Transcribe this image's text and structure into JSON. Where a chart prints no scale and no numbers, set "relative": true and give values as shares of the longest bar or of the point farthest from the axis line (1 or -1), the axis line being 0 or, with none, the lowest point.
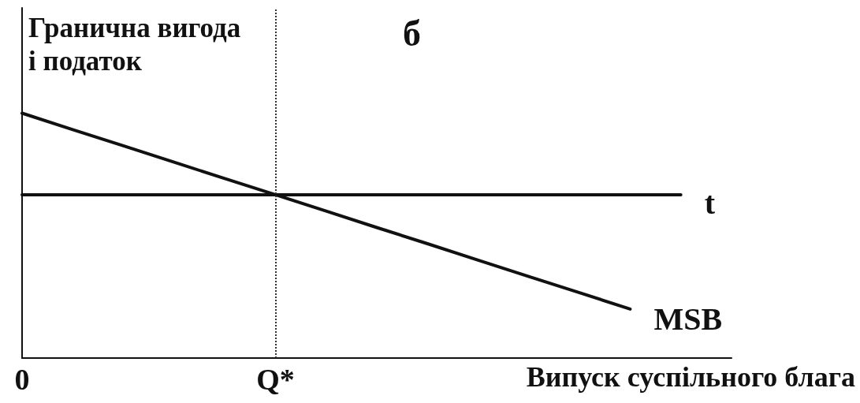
{
  "chart_data": {
    "type": "line",
    "title": "б",
    "ylabel": "Гранична вигода і податок",
    "xlabel": "Випуск суспільного блага",
    "relative": true,
    "categories": [
      "0",
      null,
      null,
      null,
      null,
      "Q*",
      null,
      null,
      null,
      null,
      null,
      null,
      null,
      null,
      null
    ],
    "tick_labels": "x",
    "series": [
      {
        "name": "t",
        "color": "#111111",
        "values": [
          0.667,
          0.667,
          0.667,
          0.667,
          0.667,
          0.667,
          0.667,
          0.667,
          0.667,
          0.667,
          0.667,
          0.667,
          0.667,
          0.667,
          null
        ]
      },
      {
        "name": "MSB",
        "color": "#111111",
        "values": [
          1,
          0.933,
          0.867,
          0.8,
          0.733,
          0.667,
          0.6,
          0.533,
          0.467,
          0.4,
          0.333,
          0.267,
          0.2,
          null,
          null
        ]
      }
    ],
    "ref_lines": [
      {
        "axis": "x",
        "value": "Q*",
        "line_style": "dotted",
        "color": "#333333"
      }
    ],
    "marker": "none",
    "line_style": "solid",
    "grid": false,
    "legend": false
  }
}
